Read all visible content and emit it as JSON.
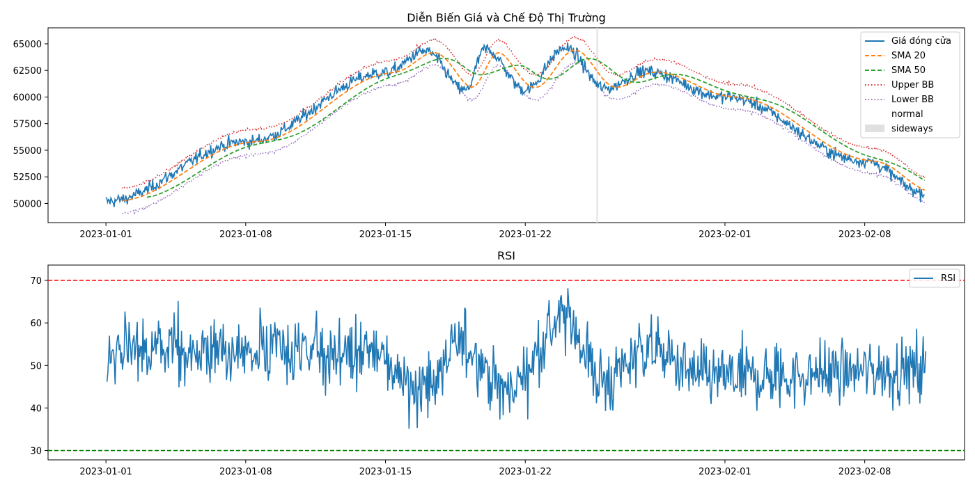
{
  "chart_data": [
    {
      "type": "line",
      "title": "Diễn Biến Giá và Chế Độ Thị Trường",
      "xlabel": "",
      "ylabel": "",
      "x_start": "2023-01-01",
      "x_end": "2023-02-11",
      "x_ticks": [
        "2023-01-01",
        "2023-01-08",
        "2023-01-15",
        "2023-01-22",
        "2023-02-01",
        "2023-02-08"
      ],
      "y_ticks": [
        50000,
        52500,
        55000,
        57500,
        60000,
        62500,
        65000
      ],
      "ylim": [
        48200,
        66500
      ],
      "grid": false,
      "legend_position": "top-right",
      "legend": [
        "Giá đóng cửa",
        "SMA 20",
        "SMA 50",
        "Upper BB",
        "Lower BB",
        "normal",
        "sideways"
      ],
      "series": [
        {
          "name": "Giá đóng cửa",
          "color": "#1f77b4",
          "style": "solid"
        },
        {
          "name": "SMA 20",
          "color": "#ff7f0e",
          "style": "dashed"
        },
        {
          "name": "SMA 50",
          "color": "#2ca02c",
          "style": "dashed"
        },
        {
          "name": "Upper BB",
          "color": "#d62728",
          "style": "dotted"
        },
        {
          "name": "Lower BB",
          "color": "#9467bd",
          "style": "dotted"
        }
      ],
      "trend_points": [
        [
          "2023-01-01",
          50200
        ],
        [
          "2023-01-08",
          55800
        ],
        [
          "2023-01-15",
          62300
        ],
        [
          "2023-01-17",
          64300
        ],
        [
          "2023-01-19",
          60600
        ],
        [
          "2023-01-20",
          64500
        ],
        [
          "2023-01-22",
          60700
        ],
        [
          "2023-01-24",
          64600
        ],
        [
          "2023-01-26",
          60800
        ],
        [
          "2023-01-28",
          62400
        ],
        [
          "2023-02-01",
          60000
        ],
        [
          "2023-02-08",
          54000
        ],
        [
          "2023-02-11",
          51000
        ]
      ],
      "regimes": [
        {
          "label": "normal",
          "color": "#ffffff"
        },
        {
          "label": "sideways",
          "color": "#e0e0e0",
          "marker_date": "2023-01-25"
        }
      ]
    },
    {
      "type": "line",
      "title": "RSI",
      "xlabel": "",
      "ylabel": "",
      "x_start": "2023-01-01",
      "x_end": "2023-02-11",
      "x_ticks": [
        "2023-01-01",
        "2023-01-08",
        "2023-01-15",
        "2023-01-22",
        "2023-02-01",
        "2023-02-08"
      ],
      "y_ticks": [
        30,
        40,
        50,
        60,
        70
      ],
      "ylim": [
        27.8,
        73.6
      ],
      "legend_position": "top-right",
      "legend": [
        "RSI"
      ],
      "series": [
        {
          "name": "RSI",
          "color": "#1f77b4"
        }
      ],
      "overbought": 70,
      "oversold": 30,
      "overbought_color": "#ff0000",
      "oversold_color": "#008000",
      "mean_points": [
        [
          "2023-01-01",
          53
        ],
        [
          "2023-01-14",
          53
        ],
        [
          "2023-01-17",
          45
        ],
        [
          "2023-01-19",
          55
        ],
        [
          "2023-01-21",
          44
        ],
        [
          "2023-01-24",
          61
        ],
        [
          "2023-01-26",
          46
        ],
        [
          "2023-01-28",
          54
        ],
        [
          "2023-01-31",
          47
        ],
        [
          "2023-02-11",
          49
        ]
      ]
    }
  ]
}
